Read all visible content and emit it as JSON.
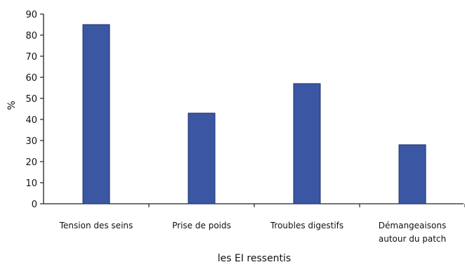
{
  "chart_data": {
    "type": "bar",
    "categories": [
      [
        "Tension des seins"
      ],
      [
        "Prise de poids"
      ],
      [
        "Troubles digestifs"
      ],
      [
        "Démangeaisons",
        "autour du patch"
      ]
    ],
    "values": [
      85,
      43,
      57,
      28
    ],
    "ylim": [
      0,
      90
    ],
    "yticks": [
      0,
      10,
      20,
      30,
      40,
      50,
      60,
      70,
      80,
      90
    ],
    "xlabel": "les EI ressentis",
    "ylabel": "%",
    "grid": false,
    "legend": "none",
    "bar_color": "#3b57a3",
    "bar_edge_color": "#1c2f6e"
  }
}
